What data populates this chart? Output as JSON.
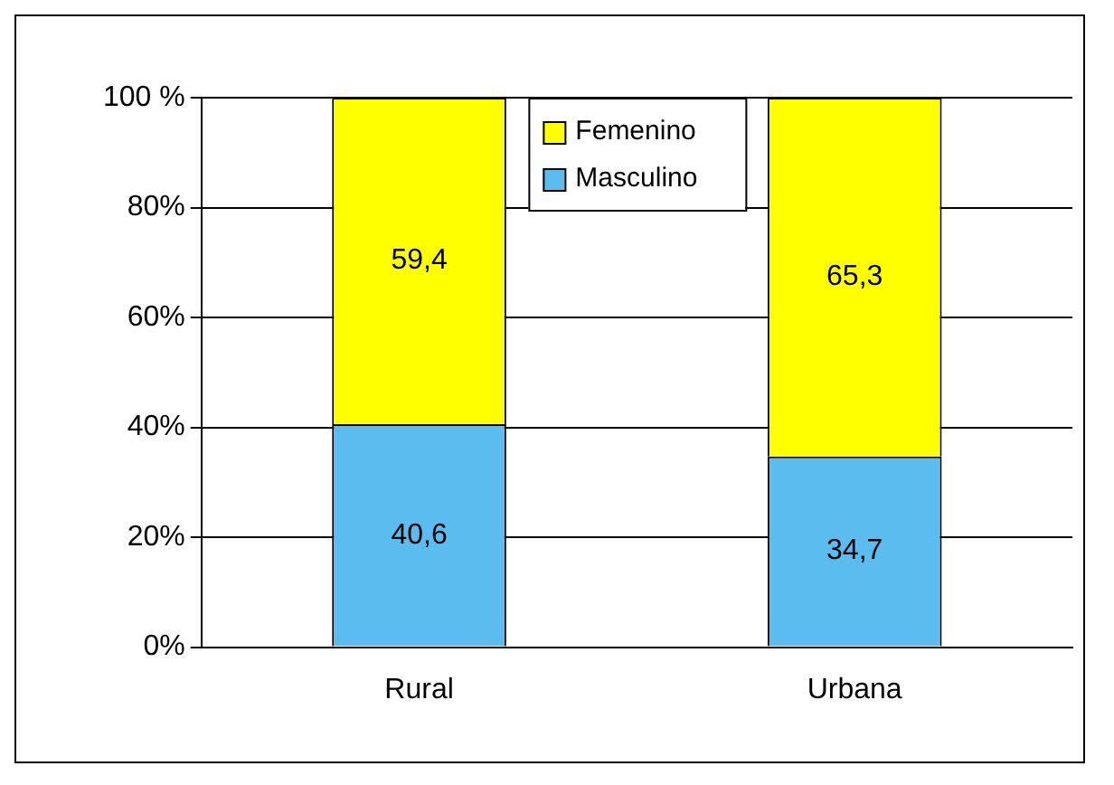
{
  "chart_data": {
    "type": "bar",
    "stacked": true,
    "categories": [
      "Rural",
      "Urbana"
    ],
    "series": [
      {
        "name": "Masculino",
        "color": "#5bbcf0",
        "values": [
          40.6,
          34.7
        ],
        "value_labels": [
          "40,6",
          "34,7"
        ]
      },
      {
        "name": "Femenino",
        "color": "#ffff00",
        "values": [
          59.4,
          65.3
        ],
        "value_labels": [
          "59,4",
          "65,3"
        ]
      }
    ],
    "ylim": [
      0,
      100
    ],
    "yticks": [
      {
        "value": 0,
        "label": "0%"
      },
      {
        "value": 20,
        "label": "20%"
      },
      {
        "value": 40,
        "label": "40%"
      },
      {
        "value": 60,
        "label": "60%"
      },
      {
        "value": 80,
        "label": "80%"
      },
      {
        "value": 100,
        "label": "100 %"
      }
    ],
    "grid": "y",
    "legend": "top"
  }
}
